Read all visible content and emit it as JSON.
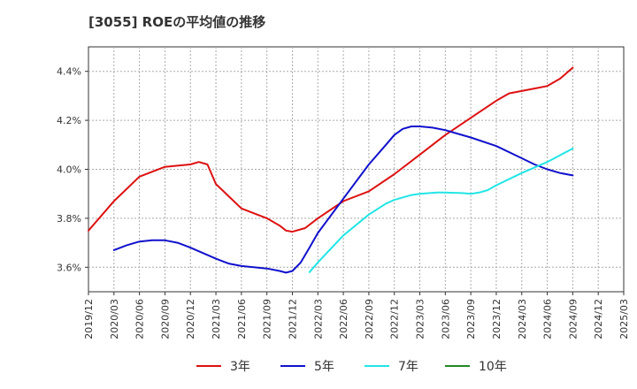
{
  "chart_data": {
    "type": "line",
    "title": "[3055]  ROEの平均値の推移",
    "x_ticks": [
      "2019/12",
      "2020/03",
      "2020/06",
      "2020/09",
      "2020/12",
      "2021/03",
      "2021/06",
      "2021/09",
      "2021/12",
      "2022/03",
      "2022/06",
      "2022/09",
      "2022/12",
      "2023/03",
      "2023/06",
      "2023/09",
      "2023/12",
      "2024/03",
      "2024/06",
      "2024/09",
      "2024/12",
      "2025/03"
    ],
    "y_ticks": [
      {
        "value": 3.6,
        "label": "3.6%"
      },
      {
        "value": 3.8,
        "label": "3.8%"
      },
      {
        "value": 4.0,
        "label": "4.0%"
      },
      {
        "value": 4.2,
        "label": "4.2%"
      },
      {
        "value": 4.4,
        "label": "4.4%"
      }
    ],
    "ylim": [
      3.5,
      4.5
    ],
    "grid": true,
    "legend_position": "bottom",
    "series": [
      {
        "name": "3年",
        "color": "#dd1111",
        "points": [
          [
            0,
            3.75
          ],
          [
            1,
            3.87
          ],
          [
            2,
            3.97
          ],
          [
            3,
            4.01
          ],
          [
            4,
            4.02
          ],
          [
            4.33,
            4.03
          ],
          [
            4.67,
            4.02
          ],
          [
            5,
            3.94
          ],
          [
            6,
            3.84
          ],
          [
            7,
            3.8
          ],
          [
            7.5,
            3.77
          ],
          [
            7.75,
            3.75
          ],
          [
            8,
            3.745
          ],
          [
            8.5,
            3.76
          ],
          [
            9,
            3.8
          ],
          [
            10,
            3.87
          ],
          [
            11,
            3.91
          ],
          [
            12,
            3.98
          ],
          [
            13,
            4.06
          ],
          [
            14,
            4.14
          ],
          [
            15,
            4.21
          ],
          [
            16,
            4.28
          ],
          [
            16.5,
            4.31
          ],
          [
            17,
            4.32
          ],
          [
            17.5,
            4.33
          ],
          [
            18,
            4.34
          ],
          [
            18.5,
            4.37
          ],
          [
            19,
            4.415
          ]
        ]
      },
      {
        "name": "5年",
        "color": "#1111cc",
        "points": [
          [
            1,
            3.67
          ],
          [
            1.5,
            3.69
          ],
          [
            2,
            3.705
          ],
          [
            2.5,
            3.71
          ],
          [
            3,
            3.71
          ],
          [
            3.5,
            3.7
          ],
          [
            4,
            3.68
          ],
          [
            5,
            3.635
          ],
          [
            5.5,
            3.615
          ],
          [
            6,
            3.605
          ],
          [
            7,
            3.595
          ],
          [
            7.5,
            3.585
          ],
          [
            7.75,
            3.578
          ],
          [
            8,
            3.585
          ],
          [
            8.33,
            3.62
          ],
          [
            8.67,
            3.68
          ],
          [
            9,
            3.74
          ],
          [
            10,
            3.88
          ],
          [
            11,
            4.02
          ],
          [
            11.67,
            4.1
          ],
          [
            12,
            4.14
          ],
          [
            12.33,
            4.165
          ],
          [
            12.67,
            4.175
          ],
          [
            13,
            4.175
          ],
          [
            13.5,
            4.17
          ],
          [
            14,
            4.16
          ],
          [
            15,
            4.13
          ],
          [
            16,
            4.095
          ],
          [
            17,
            4.045
          ],
          [
            17.5,
            4.02
          ],
          [
            18,
            4.0
          ],
          [
            18.5,
            3.985
          ],
          [
            19,
            3.975
          ]
        ]
      },
      {
        "name": "7年",
        "color": "#22e5e5",
        "points": [
          [
            8.67,
            3.58
          ],
          [
            9,
            3.62
          ],
          [
            10,
            3.73
          ],
          [
            11,
            3.815
          ],
          [
            11.67,
            3.86
          ],
          [
            12,
            3.875
          ],
          [
            12.67,
            3.895
          ],
          [
            13,
            3.9
          ],
          [
            13.67,
            3.905
          ],
          [
            14,
            3.905
          ],
          [
            14.67,
            3.903
          ],
          [
            15,
            3.9
          ],
          [
            15.33,
            3.905
          ],
          [
            15.67,
            3.915
          ],
          [
            16,
            3.935
          ],
          [
            17,
            3.985
          ],
          [
            18,
            4.03
          ],
          [
            19,
            4.085
          ]
        ]
      },
      {
        "name": "10年",
        "color": "#228822",
        "points": []
      }
    ]
  }
}
